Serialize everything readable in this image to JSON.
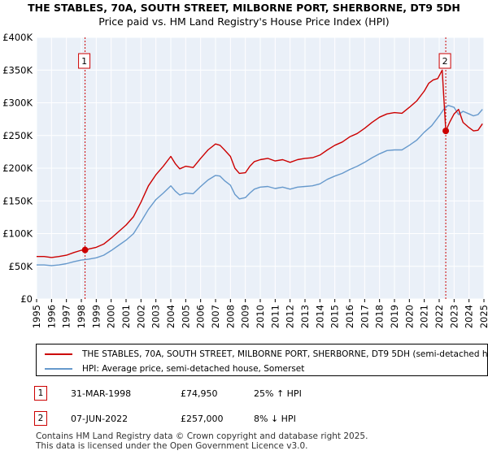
{
  "title_line1": "THE STABLES, 70A, SOUTH STREET, MILBORNE PORT, SHERBORNE, DT9 5DH",
  "title_line2": "Price paid vs. HM Land Registry's House Price Index (HPI)",
  "chart_data": {
    "type": "line",
    "title": "THE STABLES, 70A, SOUTH STREET, MILBORNE PORT, SHERBORNE, DT9 5DH — Price paid vs. HM Land Registry's House Price Index (HPI)",
    "xlabel": "",
    "ylabel": "",
    "xlim": [
      1995,
      2025
    ],
    "ylim": [
      0,
      400000
    ],
    "x_ticks": [
      1995,
      1996,
      1997,
      1998,
      1999,
      2000,
      2001,
      2002,
      2003,
      2004,
      2005,
      2006,
      2007,
      2008,
      2009,
      2010,
      2011,
      2012,
      2013,
      2014,
      2015,
      2016,
      2017,
      2018,
      2019,
      2020,
      2021,
      2022,
      2023,
      2024,
      2025
    ],
    "y_ticks": [
      {
        "value": 0,
        "label": "£0"
      },
      {
        "value": 50000,
        "label": "£50K"
      },
      {
        "value": 100000,
        "label": "£100K"
      },
      {
        "value": 150000,
        "label": "£150K"
      },
      {
        "value": 200000,
        "label": "£200K"
      },
      {
        "value": 250000,
        "label": "£250K"
      },
      {
        "value": 300000,
        "label": "£300K"
      },
      {
        "value": 350000,
        "label": "£350K"
      },
      {
        "value": 400000,
        "label": "£400K"
      }
    ],
    "grid": true,
    "series": [
      {
        "name": "THE STABLES, 70A, SOUTH STREET, MILBORNE PORT, SHERBORNE, DT9 5DH (semi-detached house)",
        "color": "#cc0000",
        "x": [
          1995,
          1995.5,
          1996,
          1996.5,
          1997,
          1997.5,
          1998,
          1998.25,
          1998.5,
          1999,
          1999.5,
          2000,
          2000.5,
          2001,
          2001.5,
          2002,
          2002.5,
          2003,
          2003.5,
          2004,
          2004.3,
          2004.6,
          2005,
          2005.5,
          2006,
          2006.5,
          2007,
          2007.3,
          2007.6,
          2008,
          2008.3,
          2008.6,
          2009,
          2009.3,
          2009.6,
          2010,
          2010.5,
          2011,
          2011.5,
          2012,
          2012.5,
          2013,
          2013.5,
          2014,
          2014.5,
          2015,
          2015.5,
          2016,
          2016.5,
          2017,
          2017.5,
          2018,
          2018.5,
          2019,
          2019.5,
          2020,
          2020.5,
          2021,
          2021.3,
          2021.6,
          2021.9,
          2022.2,
          2022.44,
          2022.7,
          2023,
          2023.3,
          2023.6,
          2024,
          2024.3,
          2024.6,
          2024.9
        ],
        "y": [
          65000,
          65000,
          63500,
          65000,
          67000,
          71000,
          74500,
          74950,
          76500,
          79000,
          84000,
          93000,
          103000,
          113000,
          126000,
          148000,
          173000,
          190000,
          203000,
          218000,
          207000,
          199000,
          203000,
          201000,
          215000,
          228000,
          237000,
          235000,
          228000,
          218000,
          200000,
          192000,
          193000,
          203000,
          210000,
          213000,
          215000,
          211000,
          213000,
          209000,
          213000,
          215000,
          216000,
          220000,
          228000,
          235000,
          240000,
          248000,
          253000,
          261000,
          270000,
          278000,
          283000,
          285000,
          284000,
          293000,
          303000,
          318000,
          330000,
          335000,
          337000,
          350000,
          257000,
          270000,
          283000,
          290000,
          270000,
          262000,
          257000,
          258000,
          268000
        ]
      },
      {
        "name": "HPI: Average price, semi-detached house, Somerset",
        "color": "#6699cc",
        "x": [
          1995,
          1995.5,
          1996,
          1996.5,
          1997,
          1997.5,
          1998,
          1998.5,
          1999,
          1999.5,
          2000,
          2000.5,
          2001,
          2001.5,
          2002,
          2002.5,
          2003,
          2003.5,
          2004,
          2004.3,
          2004.6,
          2005,
          2005.5,
          2006,
          2006.5,
          2007,
          2007.3,
          2007.6,
          2008,
          2008.3,
          2008.6,
          2009,
          2009.3,
          2009.6,
          2010,
          2010.5,
          2011,
          2011.5,
          2012,
          2012.5,
          2013,
          2013.5,
          2014,
          2014.5,
          2015,
          2015.5,
          2016,
          2016.5,
          2017,
          2017.5,
          2018,
          2018.5,
          2019,
          2019.5,
          2020,
          2020.5,
          2021,
          2021.5,
          2022,
          2022.3,
          2022.6,
          2023,
          2023.3,
          2023.6,
          2024,
          2024.3,
          2024.6,
          2024.9
        ],
        "y": [
          52000,
          52000,
          51000,
          52000,
          54000,
          57000,
          59500,
          61000,
          63000,
          67000,
          74000,
          82000,
          90000,
          100000,
          118000,
          137000,
          152000,
          162000,
          173000,
          165000,
          159000,
          162000,
          161000,
          172000,
          182000,
          189000,
          188000,
          181000,
          174000,
          160000,
          153000,
          155000,
          162000,
          168000,
          171000,
          172000,
          169000,
          171000,
          168000,
          171000,
          172000,
          173000,
          176000,
          183000,
          188000,
          192000,
          198000,
          203000,
          209000,
          216000,
          222000,
          227000,
          228000,
          228000,
          235000,
          243000,
          255000,
          265000,
          280000,
          290000,
          296000,
          293000,
          282000,
          287000,
          283000,
          280000,
          282000,
          290000
        ]
      }
    ],
    "annotations": [
      {
        "label": "1",
        "x": 1998.25,
        "y": 74950,
        "date": "31-MAR-1998",
        "price": "£74,950",
        "hpi_note": "25% ↑ HPI"
      },
      {
        "label": "2",
        "x": 2022.44,
        "y": 257000,
        "date": "07-JUN-2022",
        "price": "£257,000",
        "hpi_note": "8% ↓ HPI"
      }
    ]
  },
  "legend": {
    "property_label": "THE STABLES, 70A, SOUTH STREET, MILBORNE PORT, SHERBORNE, DT9 5DH (semi-detached house)",
    "hpi_label": "HPI: Average price, semi-detached house, Somerset",
    "property_color": "#cc0000",
    "hpi_color": "#6699cc"
  },
  "transactions": [
    {
      "num": "1",
      "date": "31-MAR-1998",
      "price": "£74,950",
      "hpi": "25% ↑ HPI"
    },
    {
      "num": "2",
      "date": "07-JUN-2022",
      "price": "£257,000",
      "hpi": "8% ↓ HPI"
    }
  ],
  "footer_line1": "Contains HM Land Registry data © Crown copyright and database right 2025.",
  "footer_line2": "This data is licensed under the Open Government Licence v3.0."
}
